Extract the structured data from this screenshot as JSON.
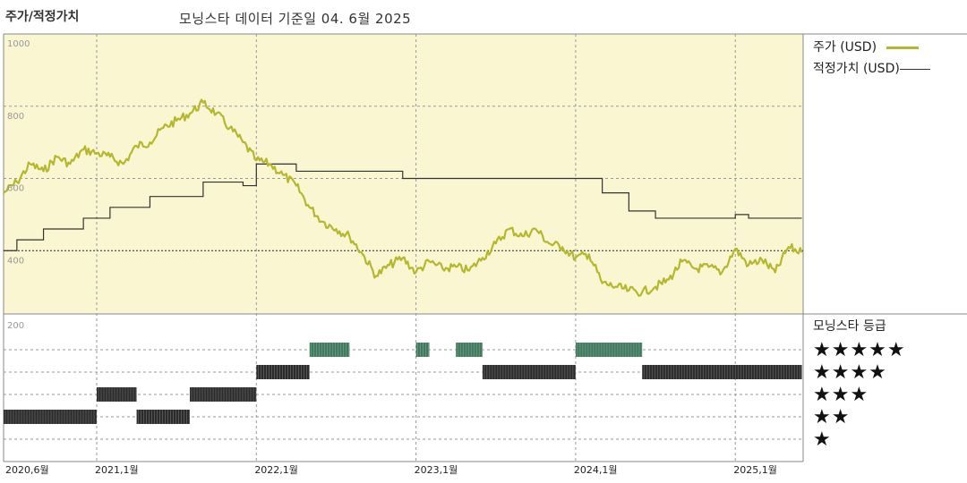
{
  "header": {
    "title": "주가/적정가치",
    "subtitle": "모닝스타 데이터 기준일 04. 6월 2025"
  },
  "legend": {
    "price": "주가 (USD)",
    "fair_value": "적정가치 (USD)",
    "price_color": "#b5b82e",
    "fair_value_color": "#333333"
  },
  "rating": {
    "title": "모닝스타 등급",
    "stars": [
      "★★★★★",
      "★★★★",
      "★★★",
      "★★",
      "★"
    ]
  },
  "colors": {
    "upper_panel_bg": "#faf6d2",
    "rating_bar": "#2b2b2b",
    "rating_bar_5": "#3f7a5c"
  },
  "chart_data": [
    {
      "type": "line",
      "title": "주가/적정가치",
      "x_range": [
        "2020-06",
        "2025-06"
      ],
      "ylim": [
        200,
        1000
      ],
      "y_ticks": [
        "200",
        "400",
        "600",
        "800",
        "1000"
      ],
      "x_ticks": [
        "2020,6월",
        "2021,1월",
        "2022,1월",
        "2023,1월",
        "2024,1월",
        "2025,1월"
      ],
      "series": [
        {
          "name": "주가 (USD)",
          "points": [
            [
              "2020-06",
              560
            ],
            [
              "2020-07",
              590
            ],
            [
              "2020-08",
              640
            ],
            [
              "2020-09",
              620
            ],
            [
              "2020-10",
              660
            ],
            [
              "2020-11",
              640
            ],
            [
              "2020-12",
              680
            ],
            [
              "2021-01",
              670
            ],
            [
              "2021-02",
              660
            ],
            [
              "2021-03",
              640
            ],
            [
              "2021-04",
              690
            ],
            [
              "2021-05",
              700
            ],
            [
              "2021-06",
              740
            ],
            [
              "2021-07",
              760
            ],
            [
              "2021-08",
              780
            ],
            [
              "2021-09",
              810
            ],
            [
              "2021-10",
              780
            ],
            [
              "2021-11",
              740
            ],
            [
              "2021-12",
              700
            ],
            [
              "2022-01",
              650
            ],
            [
              "2022-02",
              640
            ],
            [
              "2022-03",
              610
            ],
            [
              "2022-04",
              580
            ],
            [
              "2022-05",
              520
            ],
            [
              "2022-06",
              480
            ],
            [
              "2022-07",
              460
            ],
            [
              "2022-08",
              440
            ],
            [
              "2022-09",
              390
            ],
            [
              "2022-10",
              330
            ],
            [
              "2022-11",
              360
            ],
            [
              "2022-12",
              380
            ],
            [
              "2023-01",
              340
            ],
            [
              "2023-02",
              370
            ],
            [
              "2023-03",
              350
            ],
            [
              "2023-04",
              355
            ],
            [
              "2023-05",
              345
            ],
            [
              "2023-06",
              380
            ],
            [
              "2023-07",
              420
            ],
            [
              "2023-08",
              460
            ],
            [
              "2023-09",
              440
            ],
            [
              "2023-10",
              460
            ],
            [
              "2023-11",
              420
            ],
            [
              "2023-12",
              410
            ],
            [
              "2024-01",
              380
            ],
            [
              "2024-02",
              390
            ],
            [
              "2024-03",
              310
            ],
            [
              "2024-04",
              300
            ],
            [
              "2024-05",
              290
            ],
            [
              "2024-06",
              285
            ],
            [
              "2024-07",
              300
            ],
            [
              "2024-08",
              320
            ],
            [
              "2024-09",
              370
            ],
            [
              "2024-10",
              350
            ],
            [
              "2024-11",
              355
            ],
            [
              "2024-12",
              340
            ],
            [
              "2025-01",
              405
            ],
            [
              "2025-02",
              360
            ],
            [
              "2025-03",
              375
            ],
            [
              "2025-04",
              340
            ],
            [
              "2025-05",
              410
            ],
            [
              "2025-06",
              395
            ]
          ]
        },
        {
          "name": "적정가치 (USD)",
          "points": [
            [
              "2020-06",
              400
            ],
            [
              "2020-07",
              430
            ],
            [
              "2020-09",
              460
            ],
            [
              "2020-12",
              490
            ],
            [
              "2021-02",
              520
            ],
            [
              "2021-05",
              550
            ],
            [
              "2021-09",
              590
            ],
            [
              "2021-12",
              580
            ],
            [
              "2022-01",
              640
            ],
            [
              "2022-04",
              620
            ],
            [
              "2022-12",
              600
            ],
            [
              "2024-03",
              560
            ],
            [
              "2024-05",
              510
            ],
            [
              "2024-07",
              490
            ],
            [
              "2025-01",
              500
            ],
            [
              "2025-02",
              490
            ],
            [
              "2025-06",
              490
            ]
          ]
        }
      ]
    },
    {
      "type": "bar",
      "title": "모닝스타 등급",
      "categories": [
        "★★★★★",
        "★★★★",
        "★★★",
        "★★",
        "★"
      ],
      "periods": [
        {
          "rating": 2,
          "start": "2020-06",
          "end": "2021-01"
        },
        {
          "rating": 3,
          "start": "2021-01",
          "end": "2021-04"
        },
        {
          "rating": 2,
          "start": "2021-04",
          "end": "2021-08"
        },
        {
          "rating": 3,
          "start": "2021-08",
          "end": "2022-01"
        },
        {
          "rating": 4,
          "start": "2022-01",
          "end": "2022-05"
        },
        {
          "rating": 5,
          "start": "2022-05",
          "end": "2022-08"
        },
        {
          "rating": 5,
          "start": "2023-01",
          "end": "2023-02"
        },
        {
          "rating": 5,
          "start": "2023-04",
          "end": "2023-06"
        },
        {
          "rating": 4,
          "start": "2023-06",
          "end": "2024-01"
        },
        {
          "rating": 5,
          "start": "2024-01",
          "end": "2024-06"
        },
        {
          "rating": 4,
          "start": "2024-06",
          "end": "2025-06"
        }
      ]
    }
  ]
}
